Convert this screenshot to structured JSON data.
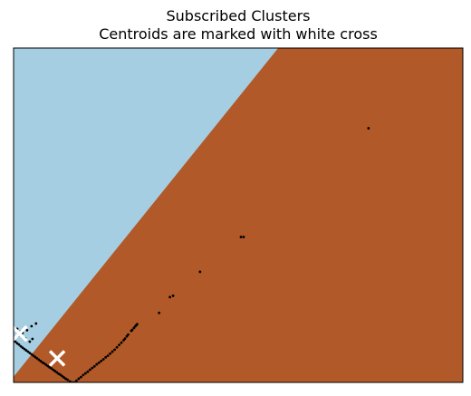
{
  "chart_data": {
    "type": "scatter",
    "title": "Subscribed Clusters",
    "subtitle": "Centroids are marked with white cross",
    "xlabel": "",
    "ylabel": "",
    "xlim": [
      0,
      100
    ],
    "ylim": [
      0,
      100
    ],
    "show_ticks": false,
    "grid": false,
    "regions": [
      {
        "cluster": 0,
        "color": "#a6cee3",
        "boundary": [
          [
            0,
            1.7
          ],
          [
            58.9,
            100
          ]
        ]
      },
      {
        "cluster": 1,
        "color": "#b15928"
      }
    ],
    "points": {
      "color": "#000000",
      "values": [
        [
          79,
          76
        ],
        [
          50.6,
          43.5
        ],
        [
          51.2,
          43.5
        ],
        [
          41.5,
          33.1
        ],
        [
          35.5,
          25.9
        ],
        [
          34.8,
          25.5
        ],
        [
          32.4,
          20.8
        ],
        [
          27.5,
          17.4
        ],
        [
          27.3,
          17.1
        ],
        [
          27.1,
          16.8
        ],
        [
          26.8,
          16.3
        ],
        [
          26.4,
          15.7
        ],
        [
          26.2,
          15.4
        ],
        [
          25.5,
          14.3
        ],
        [
          25.2,
          13.8
        ],
        [
          24.8,
          13.1
        ],
        [
          24.5,
          12.6
        ],
        [
          24.0,
          11.9
        ],
        [
          23.5,
          11.2
        ],
        [
          23.0,
          10.5
        ],
        [
          22.5,
          9.8
        ],
        [
          22.0,
          9.2
        ],
        [
          21.5,
          8.6
        ],
        [
          21.0,
          8.0
        ],
        [
          20.5,
          7.5
        ],
        [
          20.0,
          6.9
        ],
        [
          19.5,
          6.4
        ],
        [
          19.0,
          5.9
        ],
        [
          18.5,
          5.4
        ],
        [
          18.0,
          4.8
        ],
        [
          17.5,
          4.3
        ],
        [
          17.0,
          3.8
        ],
        [
          16.5,
          3.2
        ],
        [
          16.0,
          2.7
        ],
        [
          15.5,
          2.2
        ],
        [
          15.0,
          1.6
        ],
        [
          14.5,
          1.1
        ],
        [
          14.0,
          0.5
        ],
        [
          13.5,
          0.0
        ],
        [
          13.0,
          0.0
        ],
        [
          12.5,
          0.3
        ],
        [
          12.0,
          0.8
        ],
        [
          11.6,
          1.1
        ],
        [
          11.2,
          1.5
        ],
        [
          10.8,
          1.9
        ],
        [
          10.4,
          2.3
        ],
        [
          10.0,
          2.6
        ],
        [
          9.6,
          3.0
        ],
        [
          9.2,
          3.4
        ],
        [
          8.8,
          3.8
        ],
        [
          8.4,
          4.2
        ],
        [
          8.0,
          4.5
        ],
        [
          7.6,
          4.9
        ],
        [
          7.2,
          5.3
        ],
        [
          6.8,
          5.7
        ],
        [
          6.4,
          6.0
        ],
        [
          6.0,
          6.4
        ],
        [
          5.6,
          6.8
        ],
        [
          5.2,
          7.2
        ],
        [
          4.8,
          7.6
        ],
        [
          4.4,
          8.0
        ],
        [
          4.0,
          8.4
        ],
        [
          3.6,
          8.8
        ],
        [
          3.2,
          9.2
        ],
        [
          2.8,
          9.6
        ],
        [
          2.4,
          10.0
        ],
        [
          2.0,
          10.4
        ],
        [
          1.6,
          10.8
        ],
        [
          1.2,
          11.3
        ],
        [
          0.8,
          11.7
        ],
        [
          0.4,
          12.2
        ],
        [
          0.0,
          12.6
        ],
        [
          1.0,
          14.0
        ],
        [
          2.0,
          14.8
        ],
        [
          3.0,
          15.6
        ],
        [
          4.0,
          16.8
        ],
        [
          5.0,
          17.6
        ],
        [
          3.6,
          12.2
        ],
        [
          4.2,
          13.0
        ],
        [
          2.6,
          13.2
        ],
        [
          1.6,
          15.3
        ],
        [
          0.8,
          16.0
        ]
      ]
    },
    "centroids": {
      "marker": "x",
      "color": "#ffffff",
      "values": [
        [
          1.3,
          14.6
        ],
        [
          9.7,
          7.2
        ]
      ]
    }
  }
}
